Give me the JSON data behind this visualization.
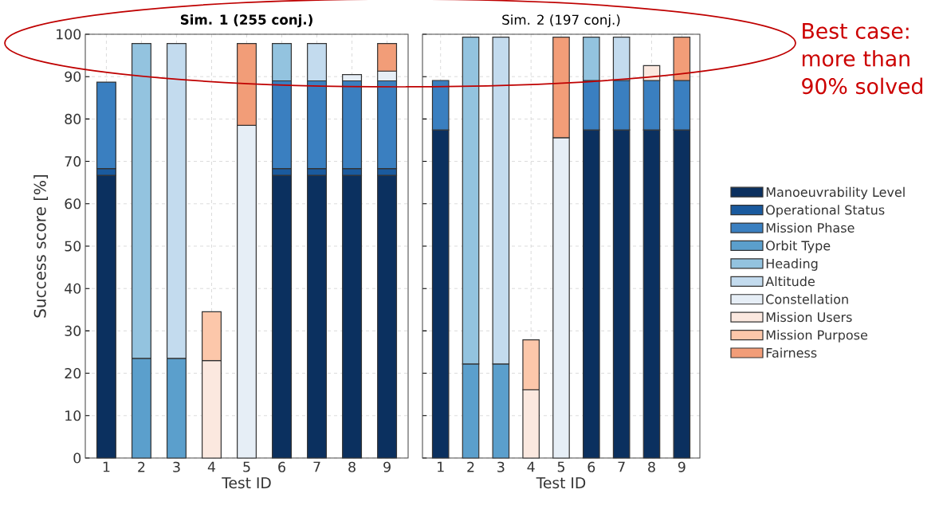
{
  "chart_data": [
    {
      "type": "bar",
      "stacked": true,
      "title": "Sim. 1 (255 conj.)",
      "xlabel": "Test ID",
      "ylabel": "Success score [%]",
      "categories": [
        "1",
        "2",
        "3",
        "4",
        "5",
        "6",
        "7",
        "8",
        "9"
      ],
      "ylim": [
        0,
        100
      ],
      "yticks": [
        0,
        10,
        20,
        30,
        40,
        50,
        60,
        70,
        80,
        90,
        100
      ],
      "grid": true,
      "legend": false,
      "series": [
        {
          "color": "#0b305f",
          "values": [
            66.7,
            null,
            null,
            null,
            null,
            66.7,
            66.7,
            66.7,
            66.7
          ]
        },
        {
          "color": "#1a5a9e",
          "values": [
            1.6,
            null,
            null,
            null,
            null,
            1.6,
            1.6,
            1.6,
            1.6
          ]
        },
        {
          "color": "#3a7fc0",
          "values": [
            20.4,
            null,
            null,
            null,
            null,
            20.7,
            20.7,
            20.7,
            20.7
          ]
        },
        {
          "color": "#5b9fcc",
          "values": [
            null,
            23.5,
            23.5,
            null,
            null,
            null,
            null,
            null,
            null
          ]
        },
        {
          "color": "#93c3df",
          "values": [
            null,
            74.3,
            null,
            null,
            null,
            8.8,
            null,
            null,
            null
          ]
        },
        {
          "color": "#c3dbee",
          "values": [
            null,
            null,
            74.3,
            null,
            null,
            null,
            8.8,
            null,
            null
          ]
        },
        {
          "color": "#e6eef6",
          "values": [
            null,
            null,
            null,
            null,
            78.5,
            null,
            null,
            1.5,
            2.3
          ]
        },
        {
          "color": "#fbe8df",
          "values": [
            null,
            null,
            null,
            23,
            null,
            null,
            null,
            null,
            null
          ]
        },
        {
          "color": "#fcc7aa",
          "values": [
            null,
            null,
            null,
            11.5,
            null,
            null,
            null,
            null,
            null
          ]
        },
        {
          "color": "#f29d78",
          "values": [
            null,
            null,
            null,
            null,
            19.3,
            null,
            null,
            null,
            6.5
          ]
        }
      ]
    },
    {
      "type": "bar",
      "stacked": true,
      "title": "Sim. 2 (197 conj.)",
      "xlabel": "Test ID",
      "categories": [
        "1",
        "2",
        "3",
        "4",
        "5",
        "6",
        "7",
        "8",
        "9"
      ],
      "ylim": [
        0,
        100
      ],
      "yticks": [
        0,
        10,
        20,
        30,
        40,
        50,
        60,
        70,
        80,
        90,
        100
      ],
      "tick_labels": "x",
      "grid": true,
      "legend": "right",
      "annotations": [
        "Best case: more than 90% solved"
      ],
      "series": [
        {
          "name": "Manoeuvrability Level",
          "color": "#0b305f",
          "values": [
            77.4,
            null,
            null,
            null,
            null,
            77.4,
            77.4,
            77.4,
            77.4
          ]
        },
        {
          "name": "Operational Status",
          "color": "#1a5a9e",
          "values": [
            null,
            null,
            null,
            null,
            null,
            null,
            null,
            null,
            null
          ]
        },
        {
          "name": "Mission Phase",
          "color": "#3a7fc0",
          "values": [
            11.7,
            null,
            null,
            null,
            null,
            11.7,
            11.7,
            11.7,
            11.7
          ]
        },
        {
          "name": "Orbit Type",
          "color": "#5b9fcc",
          "values": [
            null,
            22.2,
            22.2,
            null,
            null,
            null,
            null,
            null,
            null
          ]
        },
        {
          "name": "Heading",
          "color": "#93c3df",
          "values": [
            null,
            77.1,
            null,
            null,
            null,
            10.2,
            null,
            null,
            null
          ]
        },
        {
          "name": "Altitude",
          "color": "#c3dbee",
          "values": [
            null,
            null,
            77.1,
            null,
            null,
            null,
            10.2,
            null,
            null
          ]
        },
        {
          "name": "Constellation",
          "color": "#e6eef6",
          "values": [
            null,
            null,
            null,
            null,
            75.6,
            null,
            null,
            null,
            null
          ]
        },
        {
          "name": "Mission Users",
          "color": "#fbe8df",
          "values": [
            null,
            null,
            null,
            16.1,
            null,
            null,
            null,
            3.5,
            null
          ]
        },
        {
          "name": "Mission Purpose",
          "color": "#fcc7aa",
          "values": [
            null,
            null,
            null,
            11.8,
            null,
            null,
            null,
            null,
            null
          ]
        },
        {
          "name": "Fairness",
          "color": "#f29d78",
          "values": [
            null,
            null,
            null,
            null,
            23.7,
            null,
            null,
            null,
            10.2
          ]
        }
      ]
    }
  ]
}
